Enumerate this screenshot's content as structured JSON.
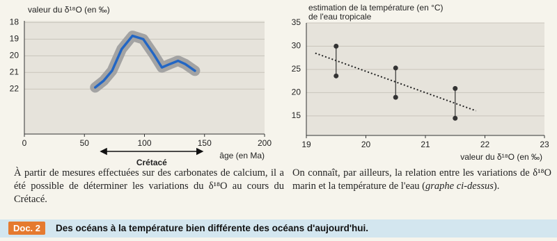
{
  "chart_data": [
    {
      "type": "line",
      "ylabel": "valeur du δ¹⁸O (en ‰)",
      "xlabel": "âge (en Ma)",
      "xlim": [
        0,
        200
      ],
      "xticks": [
        0,
        50,
        100,
        150,
        200
      ],
      "ylim": [
        24.7,
        17.9
      ],
      "yticks": [
        18,
        19,
        20,
        21,
        22
      ],
      "grid": true,
      "series": [
        {
          "color": "#2266c4",
          "band_color": "#a3a3a3",
          "x": [
            59,
            66,
            73,
            81,
            90,
            99,
            107.6,
            114.5,
            121,
            128,
            134,
            142
          ],
          "values": [
            21.9,
            21.5,
            20.9,
            19.6,
            18.8,
            19.0,
            19.9,
            20.7,
            20.5,
            20.3,
            20.5,
            20.9
          ]
        }
      ],
      "annotation": {
        "text": "Crétacé",
        "x": [
          64,
          148
        ]
      }
    },
    {
      "type": "scatter",
      "ylabel": [
        "estimation de la température (en °C)",
        "de l'eau tropicale"
      ],
      "xlabel": "valeur du δ¹⁸O (en ‰)",
      "xlim": [
        19,
        23
      ],
      "xticks": [
        19,
        20,
        21,
        22,
        23
      ],
      "ylim": [
        10.8,
        35
      ],
      "yticks": [
        15,
        20,
        25,
        30,
        35
      ],
      "grid": true,
      "color": "#333333",
      "x": [
        19.5,
        20.5,
        21.5
      ],
      "high": [
        30,
        25.3,
        20.9
      ],
      "low": [
        23.6,
        19,
        14.5
      ],
      "trend": {
        "x": [
          19.15,
          21.85
        ],
        "y": [
          28.5,
          16.1
        ]
      }
    }
  ],
  "captions": {
    "left": "À partir de mesures effectuées sur des carbonates de calcium, il a été possible de déterminer les variations du δ¹⁸O au cours du Crétacé.",
    "right": [
      "On connaît, par ailleurs, la relation entre les variations de δ¹⁸O marin et la température de l'eau (",
      "graphe ci-dessus",
      ")."
    ]
  },
  "doc": {
    "label": "Doc. 2",
    "title": "Des océans à la température bien différente des océans d'aujourd'hui."
  }
}
